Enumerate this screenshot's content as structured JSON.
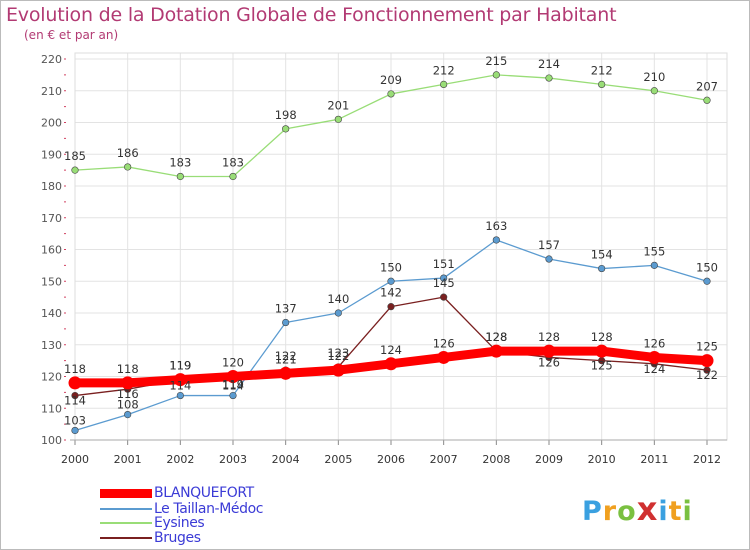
{
  "chart_data": {
    "type": "line",
    "title": "Evolution de la Dotation Globale de Fonctionnement par Habitant",
    "subtitle": "(en € et par an)",
    "x": [
      "2000",
      "2001",
      "2002",
      "2003",
      "2004",
      "2005",
      "2006",
      "2007",
      "2008",
      "2009",
      "2010",
      "2011",
      "2012"
    ],
    "ylim": [
      100,
      220
    ],
    "yticks": [
      100,
      110,
      120,
      130,
      140,
      150,
      160,
      170,
      180,
      190,
      200,
      210,
      220
    ],
    "grid": true,
    "legend_position": "bottom-left",
    "series": [
      {
        "name": "BLANQUEFORT",
        "color": "#ff0000",
        "values": [
          118,
          118,
          119,
          120,
          121,
          122,
          124,
          126,
          128,
          128,
          128,
          126,
          125
        ]
      },
      {
        "name": "Le Taillan-Médoc",
        "color": "#5b9bd0",
        "values": [
          103,
          108,
          114,
          114,
          137,
          140,
          150,
          151,
          163,
          157,
          154,
          155,
          150
        ]
      },
      {
        "name": "Eysines",
        "color": "#99dd77",
        "values": [
          185,
          186,
          183,
          183,
          198,
          201,
          209,
          212,
          215,
          214,
          212,
          210,
          207
        ]
      },
      {
        "name": "Bruges",
        "color": "#7a2020",
        "values": [
          114,
          116,
          119,
          119,
          122,
          123,
          142,
          145,
          128,
          126,
          125,
          124,
          122
        ]
      }
    ]
  },
  "logo": {
    "letters": [
      "P",
      "r",
      "o",
      "x",
      "i",
      "t",
      "i"
    ],
    "colors": [
      "#3aa0e0",
      "#f0a020",
      "#7ac040",
      "#d03030",
      "#3aa0e0",
      "#f0a020",
      "#7ac040"
    ]
  }
}
